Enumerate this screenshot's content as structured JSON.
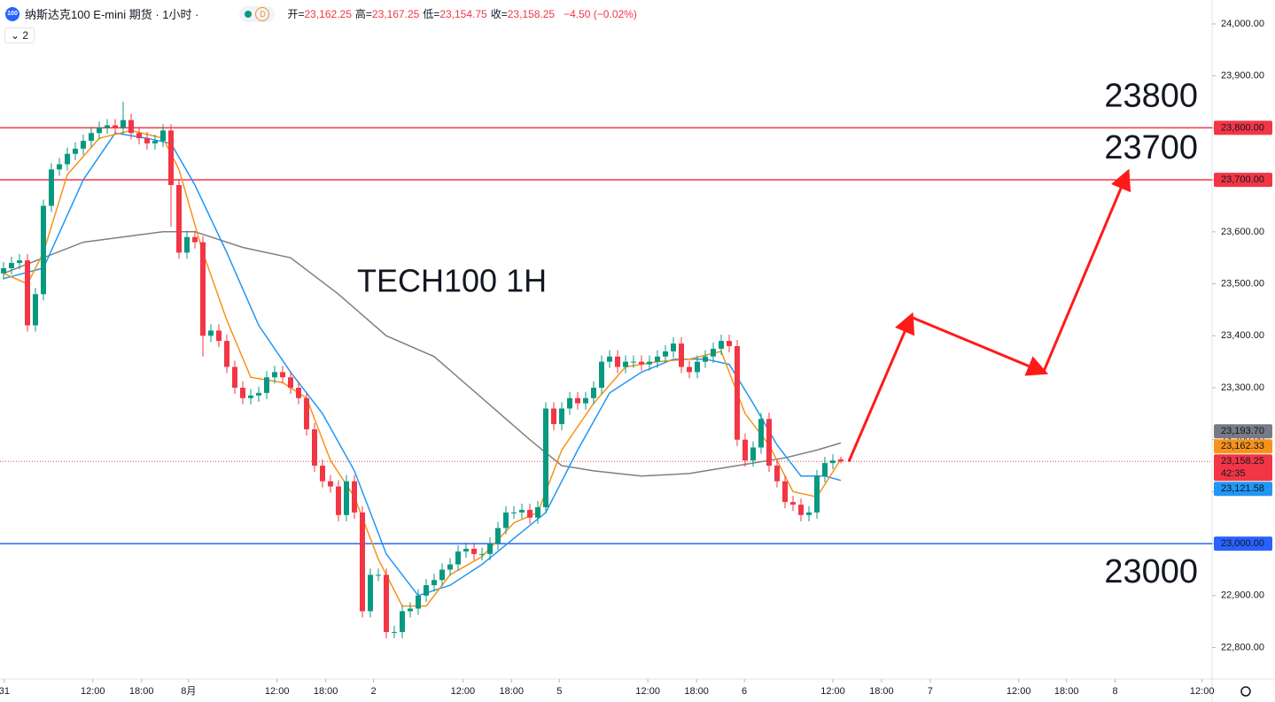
{
  "header": {
    "logo": "100",
    "title": "纳斯达克100 E-mini 期货 · 1小时 ·",
    "badge": "D",
    "ohlc": [
      {
        "key": "开=",
        "value": "23,162.25"
      },
      {
        "key": "高=",
        "value": "23,167.25"
      },
      {
        "key": "低=",
        "value": "23,154.75"
      },
      {
        "key": "收=",
        "value": "23,158.25"
      }
    ],
    "change": "−4.50 (−0.02%)",
    "indicators": "2"
  },
  "chart_data": {
    "type": "candlestick",
    "annotation": "TECH100 1H",
    "up_color": "#089981",
    "down_color": "#f23645",
    "xlim": [
      -0.444,
      151.556
    ],
    "ylim": [
      22743,
      24046
    ],
    "yticks": [
      {
        "value": 22800,
        "label": "22,800.00"
      },
      {
        "value": 22900,
        "label": "22,900.00"
      },
      {
        "value": 23000,
        "label": "23,000.00"
      },
      {
        "value": 23100,
        "label": "23,100.00"
      },
      {
        "value": 23200,
        "label": "23,200.00"
      },
      {
        "value": 23300,
        "label": "23,300.00"
      },
      {
        "value": 23400,
        "label": "23,400.00"
      },
      {
        "value": 23500,
        "label": "23,500.00"
      },
      {
        "value": 23600,
        "label": "23,600.00"
      },
      {
        "value": 23700,
        "label": "23,700.00"
      },
      {
        "value": 23800,
        "label": "23,800.00"
      },
      {
        "value": 23900,
        "label": "23,900.00"
      },
      {
        "value": 24000,
        "label": "24,000.00"
      }
    ],
    "xticks": [
      {
        "value": 0.1,
        "label": "31"
      },
      {
        "value": 11.2,
        "label": "12:00"
      },
      {
        "value": 17.3,
        "label": "18:00"
      },
      {
        "value": 23.2,
        "label": "8月"
      },
      {
        "value": 34.3,
        "label": "12:00"
      },
      {
        "value": 40.4,
        "label": "18:00"
      },
      {
        "value": 46.4,
        "label": "2"
      },
      {
        "value": 57.6,
        "label": "12:00"
      },
      {
        "value": 63.7,
        "label": "18:00"
      },
      {
        "value": 69.7,
        "label": "5"
      },
      {
        "value": 80.8,
        "label": "12:00"
      },
      {
        "value": 86.9,
        "label": "18:00"
      },
      {
        "value": 92.9,
        "label": "6"
      },
      {
        "value": 104,
        "label": "12:00"
      },
      {
        "value": 110.1,
        "label": "18:00"
      },
      {
        "value": 116.2,
        "label": "7"
      },
      {
        "value": 127.3,
        "label": "12:00"
      },
      {
        "value": 133.3,
        "label": "18:00"
      },
      {
        "value": 139.4,
        "label": "8"
      },
      {
        "value": 150.3,
        "label": "12:00"
      }
    ],
    "open": [
      23520,
      23530,
      23540,
      23545,
      23420,
      23480,
      23650,
      23720,
      23730,
      23750,
      23760,
      23775,
      23790,
      23800,
      23805,
      23800,
      23815,
      23790,
      23780,
      23770,
      23775,
      23795,
      23690,
      23560,
      23590,
      23580,
      23400,
      23410,
      23390,
      23340,
      23300,
      23280,
      23285,
      23290,
      23320,
      23330,
      23320,
      23300,
      23280,
      23220,
      23150,
      23120,
      23110,
      23055,
      23120,
      23060,
      22870,
      22940,
      22940,
      22830,
      22830,
      22870,
      22875,
      22900,
      22920,
      22930,
      22950,
      22960,
      22985,
      22990,
      22980,
      22980,
      23000,
      23030,
      23060,
      23060,
      23065,
      23050,
      23070,
      23260,
      23230,
      23260,
      23280,
      23270,
      23280,
      23300,
      23350,
      23360,
      23340,
      23350,
      23350,
      23345,
      23350,
      23360,
      23370,
      23385,
      23340,
      23330,
      23350,
      23360,
      23375,
      23390,
      23380,
      23200,
      23160,
      23185,
      23240,
      23150,
      23120,
      23080,
      23075,
      23055,
      23060,
      23130,
      23155,
      23162.25
    ],
    "high": [
      23542,
      23552,
      23557,
      23557,
      23492,
      23662,
      23732,
      23742,
      23762,
      23772,
      23787,
      23802,
      23812,
      23817,
      23817,
      23850,
      23827,
      23802,
      23792,
      23787,
      23807,
      23807,
      23702,
      23602,
      23602,
      23592,
      23422,
      23422,
      23402,
      23352,
      23312,
      23297,
      23302,
      23332,
      23342,
      23342,
      23332,
      23312,
      23292,
      23232,
      23162,
      23132,
      23122,
      23132,
      23132,
      23072,
      22952,
      22952,
      22952,
      22842,
      22882,
      22887,
      22912,
      22932,
      22942,
      22962,
      22972,
      22997,
      23002,
      23002,
      22992,
      23012,
      23042,
      23072,
      23072,
      23077,
      23077,
      23082,
      23272,
      23272,
      23272,
      23292,
      23292,
      23292,
      23312,
      23362,
      23372,
      23372,
      23362,
      23362,
      23362,
      23362,
      23372,
      23382,
      23397,
      23397,
      23352,
      23362,
      23372,
      23387,
      23402,
      23402,
      23392,
      23212,
      23197,
      23252,
      23252,
      23162,
      23132,
      23092,
      23087,
      23072,
      23142,
      23167,
      23172,
      23167.25
    ],
    "low": [
      23508,
      23518,
      23528,
      23408,
      23408,
      23468,
      23638,
      23708,
      23718,
      23738,
      23748,
      23763,
      23778,
      23788,
      23788,
      23788,
      23778,
      23768,
      23758,
      23758,
      23763,
      23610,
      23548,
      23548,
      23568,
      23360,
      23388,
      23378,
      23328,
      23288,
      23268,
      23268,
      23273,
      23278,
      23308,
      23308,
      23288,
      23268,
      23208,
      23138,
      23108,
      23098,
      23043,
      23043,
      23048,
      22858,
      22858,
      22928,
      22818,
      22818,
      22818,
      22858,
      22863,
      22888,
      22908,
      22918,
      22938,
      22948,
      22973,
      22968,
      22968,
      22968,
      22988,
      23018,
      23048,
      23048,
      23038,
      23038,
      23058,
      23218,
      23218,
      23248,
      23258,
      23258,
      23268,
      23288,
      23338,
      23328,
      23328,
      23338,
      23333,
      23333,
      23338,
      23348,
      23358,
      23328,
      23318,
      23318,
      23338,
      23348,
      23363,
      23368,
      23188,
      23148,
      23148,
      23173,
      23138,
      23108,
      23068,
      23063,
      23043,
      23043,
      23048,
      23118,
      23143,
      23154.75
    ],
    "close": [
      23530,
      23540,
      23545,
      23420,
      23480,
      23650,
      23720,
      23730,
      23750,
      23760,
      23775,
      23790,
      23800,
      23805,
      23800,
      23815,
      23790,
      23780,
      23770,
      23775,
      23795,
      23690,
      23560,
      23590,
      23580,
      23400,
      23410,
      23390,
      23340,
      23300,
      23280,
      23285,
      23290,
      23320,
      23330,
      23320,
      23300,
      23280,
      23220,
      23150,
      23120,
      23110,
      23055,
      23120,
      23060,
      22870,
      22940,
      22940,
      22830,
      22830,
      22870,
      22875,
      22900,
      22920,
      22930,
      22950,
      22960,
      22985,
      22990,
      22980,
      22980,
      23000,
      23030,
      23060,
      23060,
      23065,
      23050,
      23070,
      23260,
      23230,
      23260,
      23280,
      23270,
      23280,
      23300,
      23350,
      23360,
      23340,
      23350,
      23350,
      23345,
      23350,
      23360,
      23370,
      23385,
      23340,
      23330,
      23350,
      23360,
      23375,
      23390,
      23380,
      23200,
      23160,
      23185,
      23240,
      23150,
      23120,
      23080,
      23075,
      23055,
      23060,
      23130,
      23155,
      23160,
      23158.25
    ],
    "lines": [
      {
        "color": "#7f7f7f",
        "x": [
          0,
          10,
          20,
          24,
          30,
          36,
          42,
          48,
          54,
          60,
          66,
          70,
          74,
          80,
          86,
          92,
          98,
          102,
          105
        ],
        "values": [
          23520,
          23580,
          23600,
          23600,
          23570,
          23550,
          23480,
          23400,
          23360,
          23280,
          23200,
          23150,
          23140,
          23130,
          23135,
          23150,
          23165,
          23180,
          23193.7
        ]
      },
      {
        "color": "#2196f3",
        "x": [
          0,
          5,
          10,
          14,
          18,
          21,
          24,
          28,
          32,
          36,
          40,
          44,
          48,
          52,
          56,
          60,
          64,
          68,
          72,
          76,
          80,
          84,
          88,
          91,
          94,
          97,
          100,
          103,
          105
        ],
        "values": [
          23510,
          23530,
          23700,
          23790,
          23780,
          23770,
          23690,
          23560,
          23420,
          23330,
          23250,
          23140,
          22980,
          22900,
          22920,
          22960,
          23010,
          23060,
          23180,
          23290,
          23330,
          23355,
          23355,
          23345,
          23270,
          23190,
          23130,
          23130,
          23121.58
        ]
      },
      {
        "color": "#f7931a",
        "x": [
          0,
          3,
          5,
          8,
          12,
          16,
          20,
          22,
          25,
          28,
          31,
          35,
          38,
          41,
          44,
          47,
          50,
          53,
          56,
          60,
          64,
          67,
          70,
          74,
          78,
          82,
          86,
          90,
          93,
          96,
          99,
          102,
          105
        ],
        "values": [
          23520,
          23500,
          23560,
          23710,
          23780,
          23795,
          23780,
          23720,
          23560,
          23430,
          23320,
          23310,
          23280,
          23160,
          23090,
          22970,
          22880,
          22880,
          22940,
          22975,
          23040,
          23060,
          23180,
          23270,
          23340,
          23350,
          23355,
          23370,
          23250,
          23190,
          23100,
          23090,
          23162.33
        ]
      }
    ],
    "levels": [
      {
        "value": 23800,
        "label": "23800",
        "axis_label": "23,800.00",
        "color": "#f23645"
      },
      {
        "value": 23700,
        "label": "23700",
        "axis_label": "23,700.00",
        "color": "#f23645"
      },
      {
        "value": 23000,
        "label": "23000",
        "axis_label": "23,000.00",
        "color": "#2962ff"
      }
    ],
    "price_tags": [
      {
        "value": 23193.7,
        "label": "23,193.70",
        "color": "#787b86"
      },
      {
        "value": 23162.33,
        "label": "23,162.33",
        "color": "#f7931a"
      },
      {
        "value": 23158.25,
        "label": "23,158.25",
        "color": "#f23645",
        "countdown": "42:35"
      },
      {
        "value": 23121.58,
        "label": "23,121.58",
        "color": "#2196f3"
      }
    ],
    "arrow": {
      "x": [
        106,
        113.8,
        130.4,
        140.9
      ],
      "y": [
        23158,
        23436,
        23330,
        23712
      ],
      "color": "#ff1a1a"
    }
  }
}
